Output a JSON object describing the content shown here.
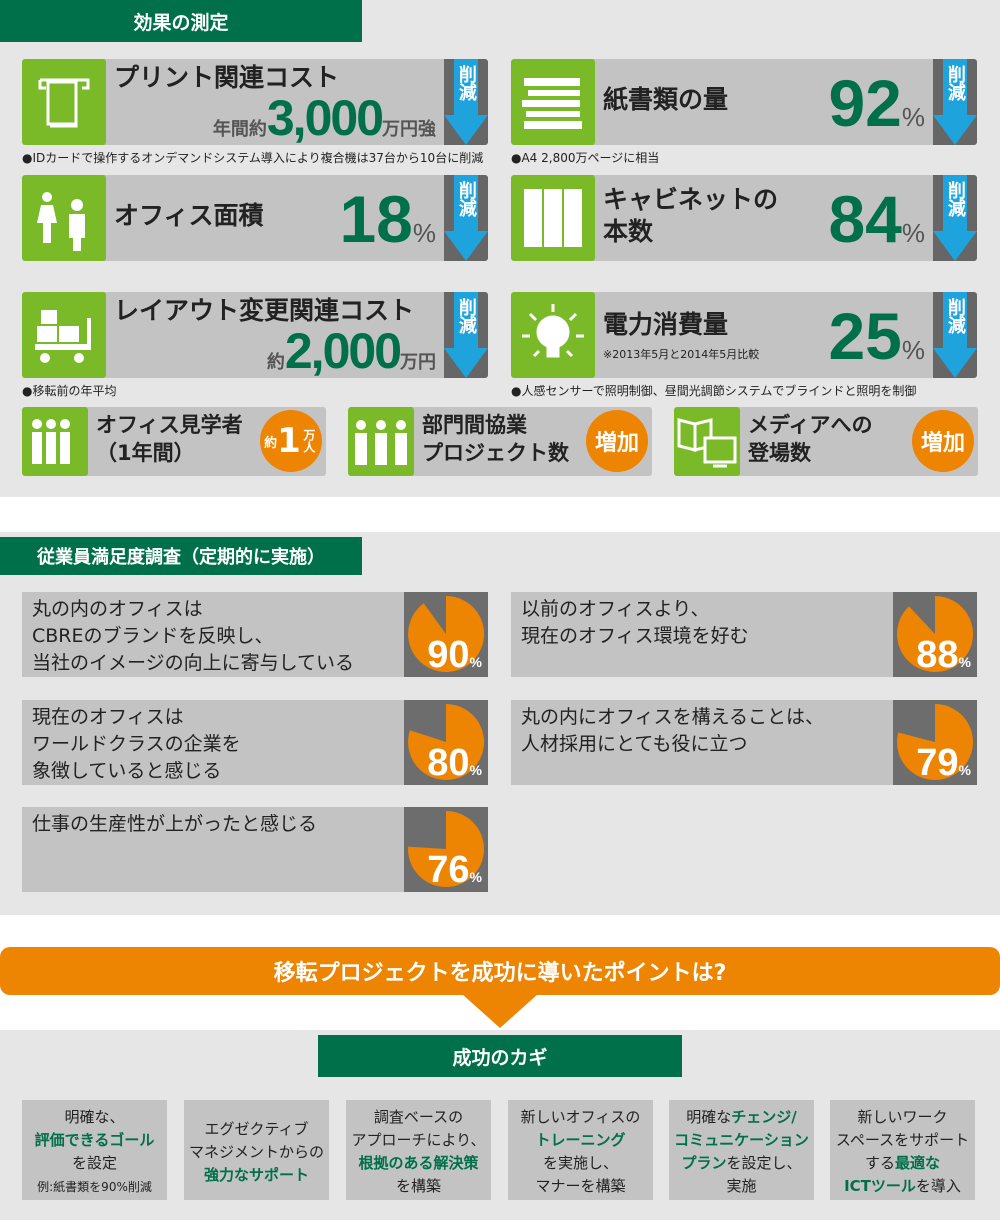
{
  "section1": {
    "title": "効果の測定",
    "reduce_label": "削減",
    "increase_label": "増加",
    "cards": [
      {
        "title": "プリント関連コスト",
        "prefix": "年間約",
        "value": "3,000",
        "suffix": "万円強",
        "icon": "printer-icon",
        "note": "●IDカードで操作するオンデマンドシステム導入により複合機は37台から10台に削減"
      },
      {
        "title": "紙書類の量",
        "value": "92",
        "suffix": "%",
        "icon": "paper-stack-icon",
        "note": "●A4 2,800万ページに相当"
      },
      {
        "title": "オフィス面積",
        "value": "18",
        "suffix": "%",
        "icon": "people-floor-icon"
      },
      {
        "title": "キャビネットの",
        "title2": "本数",
        "value": "84",
        "suffix": "%",
        "icon": "cabinet-icon"
      },
      {
        "title": "レイアウト変更関連コスト",
        "prefix": "約",
        "value": "2,000",
        "suffix": "万円",
        "icon": "cart-boxes-icon",
        "note": "●移転前の年平均"
      },
      {
        "title": "電力消費量",
        "sub": "※2013年5月と2014年5月比較",
        "value": "25",
        "suffix": "%",
        "icon": "lightbulb-icon",
        "note": "●人感センサーで照明制御、昼間光調節システムでブラインドと照明を制御"
      }
    ],
    "small_cards": [
      {
        "title": "オフィス見学者",
        "title2": "（1年間）",
        "badge_pre": "約",
        "badge_num": "1",
        "badge_unit": "万人",
        "icon": "visitors-icon"
      },
      {
        "title": "部門間協業",
        "title2": "プロジェクト数",
        "badge": "増加",
        "icon": "team-icon"
      },
      {
        "title": "メディアへの",
        "title2": "登場数",
        "badge": "増加",
        "icon": "media-icon"
      }
    ]
  },
  "section2": {
    "title": "従業員満足度調査（定期的に実施）",
    "items": [
      {
        "lines": [
          "丸の内のオフィスは",
          "CBREのブランドを反映し、",
          "当社のイメージの向上に寄与している"
        ],
        "percent": 90
      },
      {
        "lines": [
          "以前のオフィスより、",
          "現在のオフィス環境を好む"
        ],
        "percent": 88
      },
      {
        "lines": [
          "現在のオフィスは",
          "ワールドクラスの企業を",
          "象徴していると感じる"
        ],
        "percent": 80
      },
      {
        "lines": [
          "丸の内にオフィスを構えることは、",
          "人材採用にとても役に立つ"
        ],
        "percent": 79
      },
      {
        "lines": [
          "仕事の生産性が上がったと感じる"
        ],
        "percent": 76
      }
    ],
    "pct_sign": "%"
  },
  "banner": {
    "text": "移転プロジェクトを成功に導いたポイントは?"
  },
  "section3": {
    "title": "成功のカギ",
    "keys": [
      [
        [
          [
            "明確な、",
            0
          ]
        ],
        [
          [
            "評価できるゴール",
            1
          ]
        ],
        [
          [
            "を設定",
            0
          ]
        ],
        [
          [
            "例:紙書類を90%削減",
            2
          ]
        ]
      ],
      [
        [
          [
            "エグゼクティブ",
            0
          ]
        ],
        [
          [
            "マネジメントからの",
            0
          ]
        ],
        [
          [
            "強力なサポート",
            1
          ]
        ]
      ],
      [
        [
          [
            "調査ベースの",
            0
          ]
        ],
        [
          [
            "アプローチにより、",
            0
          ]
        ],
        [
          [
            "根拠のある解決策",
            1
          ]
        ],
        [
          [
            "を構築",
            0
          ]
        ]
      ],
      [
        [
          [
            "新しいオフィスの",
            0
          ]
        ],
        [
          [
            "トレーニング",
            1
          ]
        ],
        [
          [
            "を実施し、",
            0
          ]
        ],
        [
          [
            "マナーを構築",
            0
          ]
        ]
      ],
      [
        [
          [
            "明確な",
            0
          ],
          [
            "チェンジ/",
            1
          ]
        ],
        [
          [
            "コミュニケーション",
            1
          ]
        ],
        [
          [
            "プラン",
            1
          ],
          [
            "を設定し、",
            0
          ]
        ],
        [
          [
            "実施",
            0
          ]
        ]
      ],
      [
        [
          [
            "新しいワーク",
            0
          ]
        ],
        [
          [
            "スペースをサポート",
            0
          ]
        ],
        [
          [
            "する",
            0
          ],
          [
            "最適な",
            1
          ]
        ],
        [
          [
            "ICTツール",
            1
          ],
          [
            "を導入",
            0
          ]
        ]
      ]
    ]
  },
  "colors": {
    "green": "#00704a",
    "lime": "#7ab928",
    "orange": "#ed8402",
    "blue": "#1ea3dd",
    "card": "#c3c3c3"
  }
}
